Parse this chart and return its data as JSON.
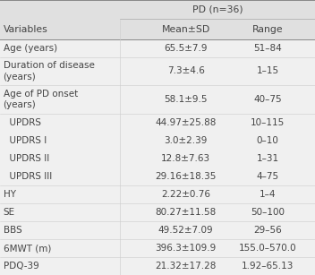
{
  "title_main": "PD (n=36)",
  "col_headers": [
    "Variables",
    "Mean±SD",
    "Range"
  ],
  "rows": [
    {
      "var": "Age (years)",
      "mean_sd": "65.5±7.9",
      "range": "51–84",
      "indent": false,
      "multiline": false
    },
    {
      "var": "Duration of disease\n(years)",
      "mean_sd": "7.3±4.6",
      "range": "1–15",
      "indent": false,
      "multiline": true
    },
    {
      "var": "Age of PD onset\n(years)",
      "mean_sd": "58.1±9.5",
      "range": "40–75",
      "indent": false,
      "multiline": true
    },
    {
      "var": "UPDRS",
      "mean_sd": "44.97±25.88",
      "range": "10–115",
      "indent": true,
      "multiline": false
    },
    {
      "var": "UPDRS I",
      "mean_sd": "3.0±2.39",
      "range": "0–10",
      "indent": true,
      "multiline": false
    },
    {
      "var": "UPDRS II",
      "mean_sd": "12.8±7.63",
      "range": "1–31",
      "indent": true,
      "multiline": false
    },
    {
      "var": "UPDRS III",
      "mean_sd": "29.16±18.35",
      "range": "4–75",
      "indent": true,
      "multiline": false
    },
    {
      "var": "HY",
      "mean_sd": "2.22±0.76",
      "range": "1–4",
      "indent": false,
      "multiline": false
    },
    {
      "var": "SE",
      "mean_sd": "80.27±11.58",
      "range": "50–100",
      "indent": false,
      "multiline": false
    },
    {
      "var": "BBS",
      "mean_sd": "49.52±7.09",
      "range": "29–56",
      "indent": false,
      "multiline": false
    },
    {
      "var": "6MWT (m)",
      "mean_sd": "396.3±109.9",
      "range": "155.0–570.0",
      "indent": false,
      "multiline": false
    },
    {
      "var": "PDQ-39",
      "mean_sd": "21.32±17.28",
      "range": "1.92–65.13",
      "indent": false,
      "multiline": false
    }
  ],
  "bg_color": "#f0f0f0",
  "header_bg": "#d8d8d8",
  "row_bg_odd": "#f0f0f0",
  "row_bg_even": "#e8e8e8",
  "text_color": "#444444",
  "border_color": "#aaaaaa",
  "font_size": 7.5,
  "header_font_size": 7.8
}
